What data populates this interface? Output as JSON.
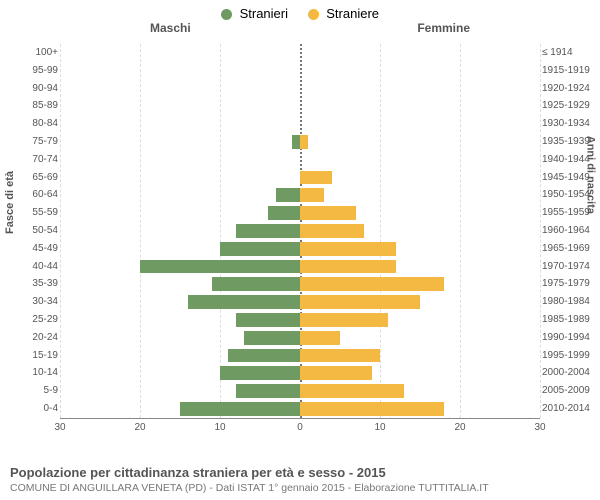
{
  "legend": {
    "male": {
      "label": "Stranieri",
      "color": "#6f9b63"
    },
    "female": {
      "label": "Straniere",
      "color": "#f4b942"
    }
  },
  "column_headers": {
    "left": "Maschi",
    "right": "Femmine"
  },
  "axis_labels": {
    "left": "Fasce di età",
    "right": "Anni di nascita"
  },
  "chart": {
    "type": "population-pyramid",
    "xmax": 30,
    "xtick_step": 10,
    "xticks_left": [
      30,
      20,
      10,
      0
    ],
    "xticks_right": [
      10,
      20,
      30
    ],
    "bar_color_left": "#6f9b63",
    "bar_color_right": "#f4b942",
    "background_color": "#ffffff",
    "grid_color": "#dddddd",
    "axis_color": "#888888",
    "centerline_color": "#777777",
    "label_color": "#555555",
    "label_fontsize": 10
  },
  "rows": [
    {
      "age": "100+",
      "birth": "≤ 1914",
      "m": 0,
      "f": 0
    },
    {
      "age": "95-99",
      "birth": "1915-1919",
      "m": 0,
      "f": 0
    },
    {
      "age": "90-94",
      "birth": "1920-1924",
      "m": 0,
      "f": 0
    },
    {
      "age": "85-89",
      "birth": "1925-1929",
      "m": 0,
      "f": 0
    },
    {
      "age": "80-84",
      "birth": "1930-1934",
      "m": 0,
      "f": 0
    },
    {
      "age": "75-79",
      "birth": "1935-1939",
      "m": 1,
      "f": 1
    },
    {
      "age": "70-74",
      "birth": "1940-1944",
      "m": 0,
      "f": 0
    },
    {
      "age": "65-69",
      "birth": "1945-1949",
      "m": 0,
      "f": 4
    },
    {
      "age": "60-64",
      "birth": "1950-1954",
      "m": 3,
      "f": 3
    },
    {
      "age": "55-59",
      "birth": "1955-1959",
      "m": 4,
      "f": 7
    },
    {
      "age": "50-54",
      "birth": "1960-1964",
      "m": 8,
      "f": 8
    },
    {
      "age": "45-49",
      "birth": "1965-1969",
      "m": 10,
      "f": 12
    },
    {
      "age": "40-44",
      "birth": "1970-1974",
      "m": 20,
      "f": 12
    },
    {
      "age": "35-39",
      "birth": "1975-1979",
      "m": 11,
      "f": 18
    },
    {
      "age": "30-34",
      "birth": "1980-1984",
      "m": 14,
      "f": 15
    },
    {
      "age": "25-29",
      "birth": "1985-1989",
      "m": 8,
      "f": 11
    },
    {
      "age": "20-24",
      "birth": "1990-1994",
      "m": 7,
      "f": 5
    },
    {
      "age": "15-19",
      "birth": "1995-1999",
      "m": 9,
      "f": 10
    },
    {
      "age": "10-14",
      "birth": "2000-2004",
      "m": 10,
      "f": 9
    },
    {
      "age": "5-9",
      "birth": "2005-2009",
      "m": 8,
      "f": 13
    },
    {
      "age": "0-4",
      "birth": "2010-2014",
      "m": 15,
      "f": 18
    }
  ],
  "footer": {
    "title": "Popolazione per cittadinanza straniera per età e sesso - 2015",
    "subtitle": "COMUNE DI ANGUILLARA VENETA (PD) - Dati ISTAT 1° gennaio 2015 - Elaborazione TUTTITALIA.IT"
  }
}
